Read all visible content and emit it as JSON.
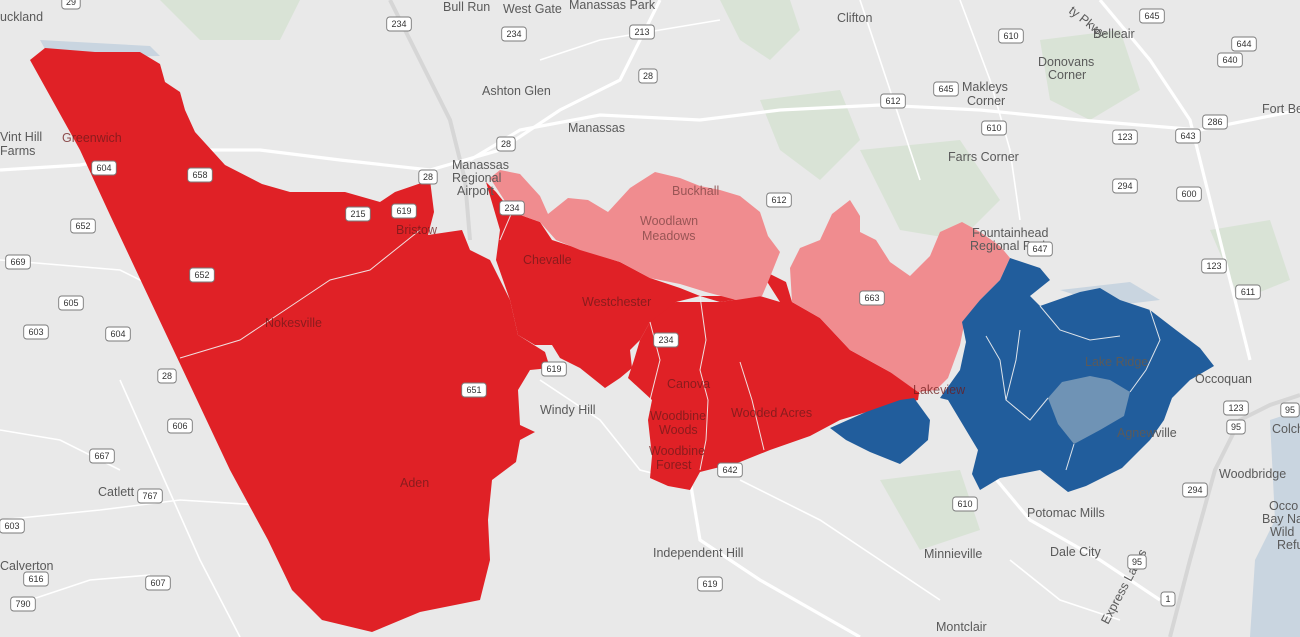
{
  "colors": {
    "background": "#e9e9e9",
    "strong_republican": "#e02126",
    "lean_republican": "#f08c8f",
    "strong_democrat": "#215d9c",
    "lean_democrat": "#6f93b5"
  },
  "places": [
    {
      "id": "buckland",
      "name": "uckland"
    },
    {
      "id": "bull-run",
      "name": "Bull Run"
    },
    {
      "id": "west-gate",
      "name": "West Gate"
    },
    {
      "id": "manassas-park",
      "name": "Manassas Park"
    },
    {
      "id": "clifton",
      "name": "Clifton"
    },
    {
      "id": "belleair",
      "name": "Belleair"
    },
    {
      "id": "ashton-glen",
      "name": "Ashton Glen"
    },
    {
      "id": "manassas",
      "name": "Manassas"
    },
    {
      "id": "donovans",
      "name": "Donovans"
    },
    {
      "id": "corner-d",
      "name": "Corner"
    },
    {
      "id": "fort-be",
      "name": "Fort Be"
    },
    {
      "id": "makleys",
      "name": "Makleys"
    },
    {
      "id": "corner-m",
      "name": "Corner"
    },
    {
      "id": "vint-hill",
      "name": "Vint Hill"
    },
    {
      "id": "farms",
      "name": "Farms"
    },
    {
      "id": "greenwich",
      "name": "Greenwich"
    },
    {
      "id": "manassas-regional",
      "name": "Manassas"
    },
    {
      "id": "regional",
      "name": "Regional"
    },
    {
      "id": "airport",
      "name": "Airport"
    },
    {
      "id": "bucall",
      "name": "Buckhall"
    },
    {
      "id": "farrs-corner",
      "name": "Farrs Corner"
    },
    {
      "id": "woodlawn",
      "name": "Woodlawn"
    },
    {
      "id": "meadows",
      "name": "Meadows"
    },
    {
      "id": "fountainhead",
      "name": "Fountainhead"
    },
    {
      "id": "regional-park",
      "name": "Regional Park"
    },
    {
      "id": "bristow",
      "name": "Bristow"
    },
    {
      "id": "chevalle",
      "name": "Chevalle"
    },
    {
      "id": "westchester",
      "name": "Westchester"
    },
    {
      "id": "nokesville",
      "name": "Nokesville"
    },
    {
      "id": "lake-ridge",
      "name": "Lake Ridge"
    },
    {
      "id": "occoquan",
      "name": "Occoquan"
    },
    {
      "id": "canova",
      "name": "Canova"
    },
    {
      "id": "lakeview",
      "name": "Lakeview"
    },
    {
      "id": "windy-hill",
      "name": "Windy Hill"
    },
    {
      "id": "woodbine-woods",
      "name": "Woodbine"
    },
    {
      "id": "woods",
      "name": "Woods"
    },
    {
      "id": "wooded-acres",
      "name": "Wooded Acres"
    },
    {
      "id": "agnewville",
      "name": "Agnewville"
    },
    {
      "id": "colch",
      "name": "Colch"
    },
    {
      "id": "woodbine-forest",
      "name": "Woodbine"
    },
    {
      "id": "forest",
      "name": "Forest"
    },
    {
      "id": "woodbridge",
      "name": "Woodbridge"
    },
    {
      "id": "catlett",
      "name": "Catlett"
    },
    {
      "id": "aden",
      "name": "Aden"
    },
    {
      "id": "potomac-mills",
      "name": "Potomac Mills"
    },
    {
      "id": "occo",
      "name": "Occo"
    },
    {
      "id": "bay-na",
      "name": "Bay Na"
    },
    {
      "id": "wild",
      "name": "Wild"
    },
    {
      "id": "refu",
      "name": "Refu"
    },
    {
      "id": "calverton",
      "name": "Calverton"
    },
    {
      "id": "independent-hill",
      "name": "Independent Hill"
    },
    {
      "id": "minnieville",
      "name": "Minnieville"
    },
    {
      "id": "dale-city",
      "name": "Dale City"
    },
    {
      "id": "montclair",
      "name": "Montclair"
    },
    {
      "id": "express-lanes",
      "name": "Express Lanes"
    },
    {
      "id": "pkwy",
      "name": "ty Pkwy"
    }
  ],
  "shields": [
    {
      "id": "s29",
      "label": "29"
    },
    {
      "id": "s234a",
      "label": "234"
    },
    {
      "id": "s234b",
      "label": "234"
    },
    {
      "id": "s213",
      "label": "213"
    },
    {
      "id": "s645a",
      "label": "645"
    },
    {
      "id": "s610a",
      "label": "610"
    },
    {
      "id": "s644",
      "label": "644"
    },
    {
      "id": "s640",
      "label": "640"
    },
    {
      "id": "s28a",
      "label": "28"
    },
    {
      "id": "s645b",
      "label": "645"
    },
    {
      "id": "s612a",
      "label": "612"
    },
    {
      "id": "s28b",
      "label": "28"
    },
    {
      "id": "s610b",
      "label": "610"
    },
    {
      "id": "s123a",
      "label": "123"
    },
    {
      "id": "s643",
      "label": "643"
    },
    {
      "id": "s286",
      "label": "286"
    },
    {
      "id": "s604a",
      "label": "604"
    },
    {
      "id": "s658",
      "label": "658"
    },
    {
      "id": "s28c",
      "label": "28"
    },
    {
      "id": "s234c",
      "label": "234"
    },
    {
      "id": "s612b",
      "label": "612"
    },
    {
      "id": "s600",
      "label": "600"
    },
    {
      "id": "s215",
      "label": "215"
    },
    {
      "id": "s619a",
      "label": "619"
    },
    {
      "id": "s652a",
      "label": "652"
    },
    {
      "id": "s294a",
      "label": "294"
    },
    {
      "id": "s647",
      "label": "647"
    },
    {
      "id": "s669",
      "label": "669"
    },
    {
      "id": "s652b",
      "label": "652"
    },
    {
      "id": "s663",
      "label": "663"
    },
    {
      "id": "s123b",
      "label": "123"
    },
    {
      "id": "s605",
      "label": "605"
    },
    {
      "id": "s611",
      "label": "611"
    },
    {
      "id": "s603a",
      "label": "603"
    },
    {
      "id": "s604b",
      "label": "604"
    },
    {
      "id": "s234d",
      "label": "234"
    },
    {
      "id": "s28d",
      "label": "28"
    },
    {
      "id": "s619b",
      "label": "619"
    },
    {
      "id": "s651",
      "label": "651"
    },
    {
      "id": "s123c",
      "label": "123"
    },
    {
      "id": "s95a",
      "label": "95"
    },
    {
      "id": "s606",
      "label": "606"
    },
    {
      "id": "s95b",
      "label": "95"
    },
    {
      "id": "s667",
      "label": "667"
    },
    {
      "id": "s642",
      "label": "642"
    },
    {
      "id": "s294b",
      "label": "294"
    },
    {
      "id": "s767",
      "label": "767"
    },
    {
      "id": "s610c",
      "label": "610"
    },
    {
      "id": "s603b",
      "label": "603"
    },
    {
      "id": "s95c",
      "label": "95"
    },
    {
      "id": "s616",
      "label": "616"
    },
    {
      "id": "s607",
      "label": "607"
    },
    {
      "id": "s619c",
      "label": "619"
    },
    {
      "id": "s1",
      "label": "1"
    },
    {
      "id": "s790",
      "label": "790"
    }
  ]
}
